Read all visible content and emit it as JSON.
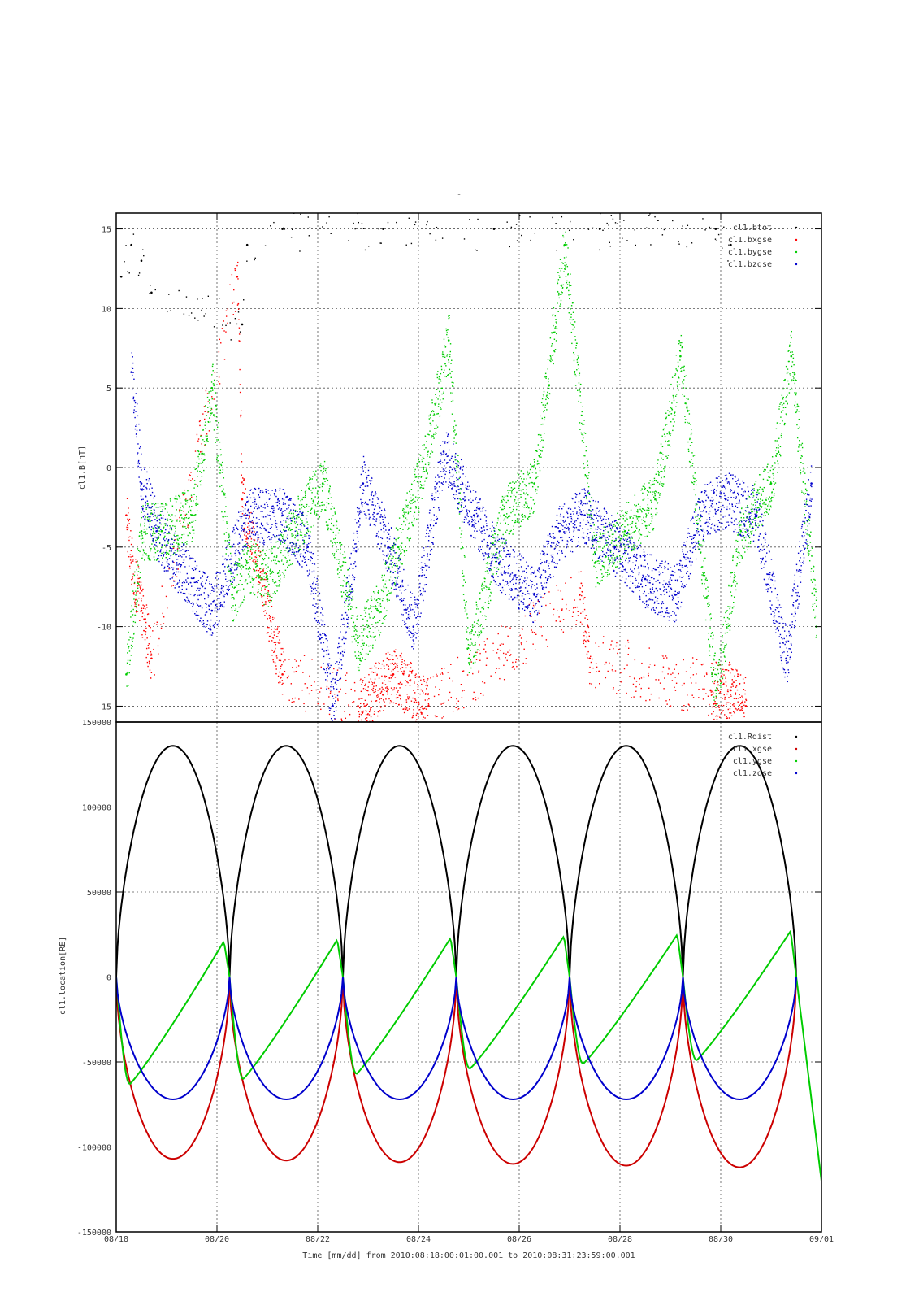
{
  "figure": {
    "top_title": "-",
    "xlabel": "Time [mm/dd]  from 2010:08:18:00:01:00.001  to  2010:08:31:23:59:00.001",
    "xticks": [
      "08/18",
      "08/20",
      "08/22",
      "08/24",
      "08/26",
      "08/28",
      "08/30",
      "09/01"
    ]
  },
  "chart_data": [
    {
      "type": "scatter",
      "ylabel": "cl1.B[nT]",
      "ylim": [
        -16,
        16
      ],
      "xlim": [
        0,
        14
      ],
      "x_unit": "days since 08/18",
      "grid": true,
      "legend_position": "top-right",
      "yticks": [
        "15",
        "10",
        "5",
        "0",
        "-5",
        "-10",
        "-15"
      ],
      "ytick_values": [
        15,
        10,
        5,
        0,
        -5,
        -10,
        -15
      ],
      "series": [
        {
          "name": "cl1.btot",
          "color": "#000000",
          "values": [
            [
              0.1,
              12
            ],
            [
              0.3,
              14
            ],
            [
              0.5,
              13
            ],
            [
              0.7,
              11
            ],
            [
              2.5,
              9
            ],
            [
              2.6,
              14
            ],
            [
              3.3,
              15
            ],
            [
              5.3,
              15
            ],
            [
              7.5,
              15
            ],
            [
              9.6,
              15
            ],
            [
              11.9,
              15
            ],
            [
              12.2,
              14
            ]
          ]
        },
        {
          "name": "cl1.bxgse",
          "color": "#ff0000",
          "values": [
            [
              0.2,
              -3
            ],
            [
              0.3,
              -6
            ],
            [
              0.5,
              -9
            ],
            [
              0.7,
              -12
            ],
            [
              2.4,
              12
            ],
            [
              2.5,
              -2
            ],
            [
              3.3,
              -13
            ],
            [
              4.8,
              -15
            ],
            [
              5.5,
              -13
            ],
            [
              6.2,
              -15
            ],
            [
              9.2,
              -8
            ],
            [
              9.4,
              -12
            ],
            [
              11.8,
              -14
            ],
            [
              12.2,
              -14
            ],
            [
              12.5,
              -15
            ]
          ]
        },
        {
          "name": "cl1.bygse",
          "color": "#00cc00",
          "values": [
            [
              0.2,
              -13
            ],
            [
              0.5,
              -4
            ],
            [
              0.9,
              -4
            ],
            [
              1.5,
              -3
            ],
            [
              1.9,
              5
            ],
            [
              2.3,
              -8
            ],
            [
              2.6,
              -6
            ],
            [
              3,
              -7
            ],
            [
              3.7,
              -3
            ],
            [
              4.1,
              -1
            ],
            [
              4.8,
              -11
            ],
            [
              5.2,
              -9
            ],
            [
              5.6,
              -5
            ],
            [
              6.1,
              0
            ],
            [
              6.6,
              8
            ],
            [
              7,
              -12
            ],
            [
              7.7,
              -3
            ],
            [
              8.3,
              -1
            ],
            [
              8.9,
              14
            ],
            [
              9.5,
              -6
            ],
            [
              10.1,
              -4
            ],
            [
              10.7,
              -2
            ],
            [
              11.2,
              7
            ],
            [
              11.9,
              -14
            ],
            [
              12.4,
              -4
            ],
            [
              13,
              -1
            ],
            [
              13.4,
              7
            ],
            [
              13.9,
              -10
            ]
          ]
        },
        {
          "name": "cl1.bzgse",
          "color": "#0000cc",
          "values": [
            [
              0.3,
              6
            ],
            [
              0.5,
              -1
            ],
            [
              0.8,
              -4
            ],
            [
              1.2,
              -6
            ],
            [
              1.9,
              -9
            ],
            [
              2.6,
              -3
            ],
            [
              3.3,
              -3
            ],
            [
              3.8,
              -5
            ],
            [
              4.3,
              -15
            ],
            [
              4.9,
              -1
            ],
            [
              5.4,
              -5
            ],
            [
              5.9,
              -10
            ],
            [
              6.5,
              1
            ],
            [
              7.1,
              -3
            ],
            [
              7.6,
              -6
            ],
            [
              8.3,
              -8
            ],
            [
              8.8,
              -4
            ],
            [
              9.3,
              -3
            ],
            [
              9.9,
              -5
            ],
            [
              10.5,
              -7
            ],
            [
              11.1,
              -8
            ],
            [
              11.6,
              -3
            ],
            [
              12.1,
              -2
            ],
            [
              12.7,
              -3
            ],
            [
              13.3,
              -12
            ],
            [
              13.8,
              -1
            ]
          ]
        }
      ]
    },
    {
      "type": "line",
      "ylabel": "cl1.location[RE]",
      "ylim": [
        -150000,
        150000
      ],
      "xlim": [
        0,
        14
      ],
      "x_unit": "days since 08/18",
      "grid": true,
      "legend_position": "top-right",
      "yticks": [
        "150000",
        "100000",
        "50000",
        "0",
        "-50000",
        "-100000",
        "-150000"
      ],
      "ytick_values": [
        150000,
        100000,
        50000,
        0,
        -50000,
        -100000,
        -150000
      ],
      "orbit_perigee_days": [
        0,
        2.25,
        4.5,
        6.75,
        9.0,
        11.25,
        13.5
      ],
      "series": [
        {
          "name": "cl1.Rdist",
          "color": "#000000",
          "peak_values": [
            136000,
            136000,
            136000,
            136000,
            136000,
            136000
          ]
        },
        {
          "name": "cl1.xgse",
          "color": "#cc0000",
          "min_values": [
            -107000,
            -108000,
            -109000,
            -110000,
            -111000,
            -112000
          ]
        },
        {
          "name": "cl1.ygse",
          "color": "#00cc00",
          "max_values": [
            21000,
            22000,
            23000,
            24000,
            25000,
            27000
          ],
          "min_values": [
            -63000,
            -60000,
            -57000,
            -54000,
            -51000,
            -49000
          ]
        },
        {
          "name": "cl1.zgse",
          "color": "#0000cc",
          "min_values": [
            -72000,
            -72000,
            -72000,
            -72000,
            -72000,
            -72000
          ]
        }
      ]
    }
  ]
}
